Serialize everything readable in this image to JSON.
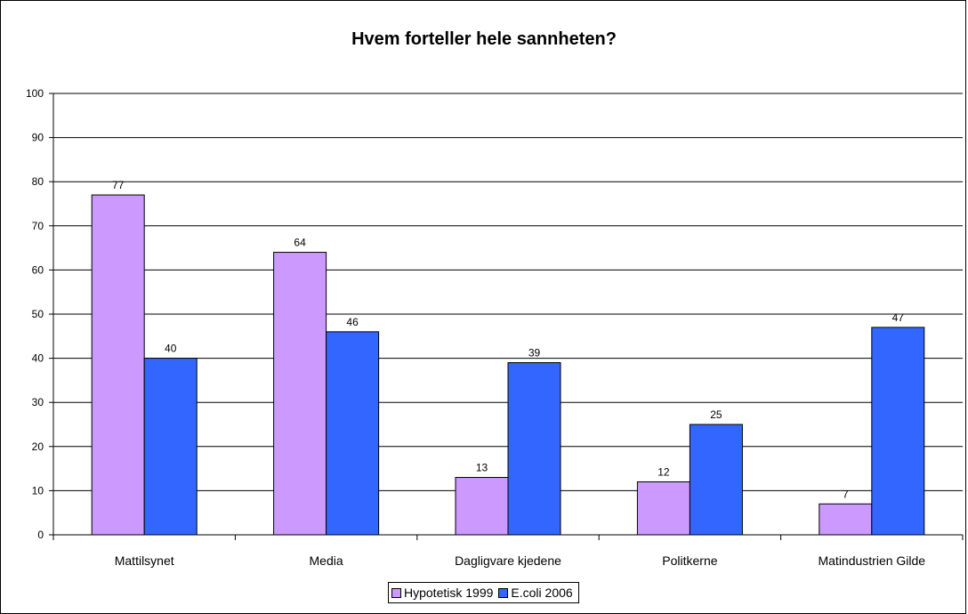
{
  "chart_data": {
    "type": "bar",
    "title": "Hvem forteller hele sannheten?",
    "categories": [
      "Mattilsynet",
      "Media",
      "Dagligvare kjedene",
      "Politkerne",
      "Matindustrien Gilde"
    ],
    "series": [
      {
        "name": "Hypotetisk 1999",
        "values": [
          77,
          64,
          13,
          12,
          7
        ],
        "color": "#cc99ff"
      },
      {
        "name": "E.coli 2006",
        "values": [
          40,
          46,
          39,
          25,
          47
        ],
        "color": "#3366ff"
      }
    ],
    "ylim": [
      0,
      100
    ],
    "yticks": [
      0,
      10,
      20,
      30,
      40,
      50,
      60,
      70,
      80,
      90,
      100
    ],
    "grid": true,
    "legend_position": "bottom"
  }
}
